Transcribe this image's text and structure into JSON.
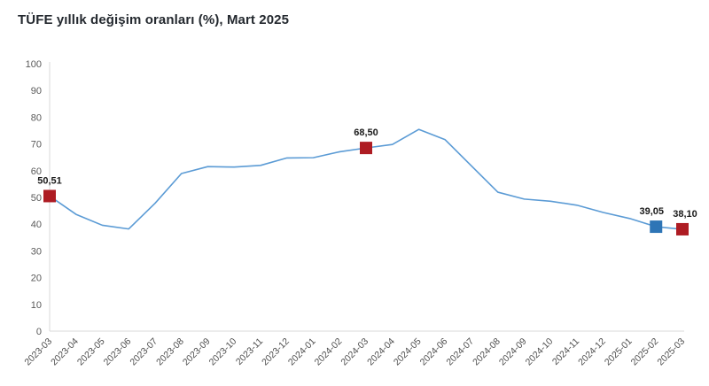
{
  "title": "TÜFE yıllık değişim oranları (%), Mart 2025",
  "chart_data": {
    "type": "line",
    "title": "TÜFE yıllık değişim oranları (%), Mart 2025",
    "xlabel": "",
    "ylabel": "",
    "ylim": [
      0,
      100
    ],
    "ytick_step": 10,
    "grid": false,
    "legend": "none",
    "line_color": "#5b9bd5",
    "axis_color": "#d9d9d9",
    "categories": [
      "2023-03",
      "2023-04",
      "2023-05",
      "2023-06",
      "2023-07",
      "2023-08",
      "2023-09",
      "2023-10",
      "2023-11",
      "2023-12",
      "2024-01",
      "2024-02",
      "2024-03",
      "2024-04",
      "2024-05",
      "2024-06",
      "2024-07",
      "2024-08",
      "2024-09",
      "2024-10",
      "2024-11",
      "2024-12",
      "2025-01",
      "2025-02",
      "2025-03"
    ],
    "values": [
      50.51,
      43.68,
      39.59,
      38.21,
      47.83,
      58.94,
      61.53,
      61.36,
      61.98,
      64.77,
      64.86,
      67.07,
      68.5,
      69.8,
      75.45,
      71.6,
      61.78,
      51.97,
      49.38,
      48.58,
      47.09,
      44.38,
      42.12,
      39.05,
      38.1
    ],
    "highlighted_points": [
      {
        "category": "2023-03",
        "value": 50.51,
        "label": "50,51",
        "color": "#ae1c23",
        "label_dx": 0
      },
      {
        "category": "2024-03",
        "value": 68.5,
        "label": "68,50",
        "color": "#ae1c23",
        "label_dx": 0
      },
      {
        "category": "2025-02",
        "value": 39.05,
        "label": "39,05",
        "color": "#2e75b6",
        "label_dx": -5
      },
      {
        "category": "2025-03",
        "value": 38.1,
        "label": "38,10",
        "color": "#ae1c23",
        "label_dx": 3
      }
    ]
  }
}
